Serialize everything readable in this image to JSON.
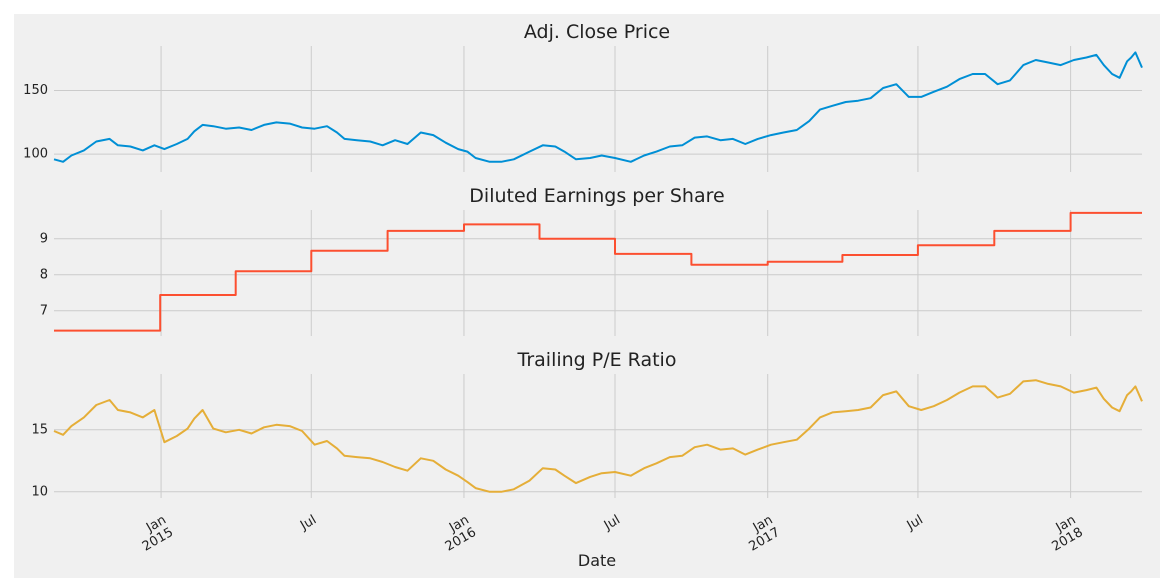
{
  "chart_data": [
    {
      "type": "line",
      "title": "Adj. Close Price",
      "xlabel": "",
      "ylabel": "",
      "color": "#008fd5",
      "yticks": [
        100,
        150
      ],
      "ylim": [
        86,
        185
      ],
      "xlim": [
        "2014-08-25",
        "2018-03-28"
      ],
      "grid": true,
      "series": [
        {
          "x": [
            "2014-08-25",
            "2014-09-05",
            "2014-09-15",
            "2014-09-30",
            "2014-10-15",
            "2014-10-31",
            "2014-11-10",
            "2014-11-25",
            "2014-12-10",
            "2014-12-24",
            "2015-01-05",
            "2015-01-20",
            "2015-02-02",
            "2015-02-10",
            "2015-02-20",
            "2015-03-05",
            "2015-03-20",
            "2015-04-05",
            "2015-04-20",
            "2015-05-05",
            "2015-05-20",
            "2015-06-05",
            "2015-06-20",
            "2015-07-05",
            "2015-07-20",
            "2015-08-01",
            "2015-08-10",
            "2015-08-25",
            "2015-09-10",
            "2015-09-25",
            "2015-10-10",
            "2015-10-25",
            "2015-11-10",
            "2015-11-25",
            "2015-12-10",
            "2015-12-25",
            "2016-01-05",
            "2016-01-15",
            "2016-02-01",
            "2016-02-15",
            "2016-03-01",
            "2016-03-20",
            "2016-04-05",
            "2016-04-20",
            "2016-05-01",
            "2016-05-15",
            "2016-06-01",
            "2016-06-15",
            "2016-07-01",
            "2016-07-20",
            "2016-08-05",
            "2016-08-20",
            "2016-09-05",
            "2016-09-20",
            "2016-10-05",
            "2016-10-20",
            "2016-11-05",
            "2016-11-20",
            "2016-12-05",
            "2016-12-20",
            "2017-01-05",
            "2017-01-20",
            "2017-02-05",
            "2017-02-20",
            "2017-03-05",
            "2017-03-20",
            "2017-04-05",
            "2017-04-20",
            "2017-05-05",
            "2017-05-20",
            "2017-06-05",
            "2017-06-20",
            "2017-07-05",
            "2017-07-20",
            "2017-08-05",
            "2017-08-20",
            "2017-09-05",
            "2017-09-20",
            "2017-10-05",
            "2017-10-20",
            "2017-11-05",
            "2017-11-20",
            "2017-12-05",
            "2017-12-20",
            "2018-01-05",
            "2018-01-20",
            "2018-02-01",
            "2018-02-10",
            "2018-02-20",
            "2018-03-01",
            "2018-03-10",
            "2018-03-15",
            "2018-03-20",
            "2018-03-28"
          ],
          "y": [
            96,
            94,
            99,
            103,
            110,
            112,
            107,
            106,
            103,
            107,
            104,
            108,
            112,
            118,
            123,
            122,
            120,
            121,
            119,
            123,
            125,
            124,
            121,
            120,
            122,
            117,
            112,
            111,
            110,
            107,
            111,
            108,
            117,
            115,
            109,
            104,
            102,
            97,
            94,
            94,
            96,
            102,
            107,
            106,
            102,
            96,
            97,
            99,
            97,
            94,
            99,
            102,
            106,
            107,
            113,
            114,
            111,
            112,
            108,
            112,
            115,
            117,
            119,
            126,
            135,
            138,
            141,
            142,
            144,
            152,
            155,
            145,
            145,
            149,
            153,
            159,
            163,
            163,
            155,
            158,
            170,
            174,
            172,
            170,
            174,
            176,
            178,
            170,
            163,
            160,
            173,
            176,
            180,
            168
          ]
        }
      ]
    },
    {
      "type": "line",
      "title": "Diluted Earnings per Share",
      "xlabel": "",
      "ylabel": "",
      "color": "#fc4f30",
      "yticks": [
        7,
        8,
        9
      ],
      "ylim": [
        6.3,
        9.8
      ],
      "xlim": [
        "2014-08-25",
        "2018-03-28"
      ],
      "grid": true,
      "step": true,
      "series": [
        {
          "x": [
            "2014-08-25",
            "2014-12-31",
            "2015-04-01",
            "2015-07-01",
            "2015-10-01",
            "2016-01-01",
            "2016-04-01",
            "2016-07-01",
            "2016-10-01",
            "2017-01-01",
            "2017-04-01",
            "2017-07-01",
            "2017-10-01",
            "2018-01-01",
            "2018-03-28"
          ],
          "y": [
            6.45,
            7.44,
            8.1,
            8.67,
            9.22,
            9.4,
            9.0,
            8.58,
            8.28,
            8.36,
            8.55,
            8.82,
            9.22,
            9.72,
            9.72
          ]
        }
      ]
    },
    {
      "type": "line",
      "title": "Trailing P/E Ratio",
      "xlabel": "Date",
      "ylabel": "",
      "color": "#e5ae38",
      "yticks": [
        10,
        15
      ],
      "ylim": [
        9.5,
        19.5
      ],
      "xlim": [
        "2014-08-25",
        "2018-03-28"
      ],
      "xticks": [
        {
          "date": "2015-01-01",
          "lines": [
            "Jan",
            "2015"
          ]
        },
        {
          "date": "2015-07-01",
          "lines": [
            "Jul"
          ]
        },
        {
          "date": "2016-01-01",
          "lines": [
            "Jan",
            "2016"
          ]
        },
        {
          "date": "2016-07-01",
          "lines": [
            "Jul"
          ]
        },
        {
          "date": "2017-01-01",
          "lines": [
            "Jan",
            "2017"
          ]
        },
        {
          "date": "2017-07-01",
          "lines": [
            "Jul"
          ]
        },
        {
          "date": "2018-01-01",
          "lines": [
            "Jan",
            "2018"
          ]
        }
      ],
      "grid": true,
      "series": [
        {
          "x": [
            "2014-08-25",
            "2014-09-05",
            "2014-09-15",
            "2014-09-30",
            "2014-10-15",
            "2014-10-31",
            "2014-11-10",
            "2014-11-25",
            "2014-12-10",
            "2014-12-24",
            "2015-01-05",
            "2015-01-20",
            "2015-02-02",
            "2015-02-10",
            "2015-02-20",
            "2015-03-05",
            "2015-03-20",
            "2015-04-05",
            "2015-04-20",
            "2015-05-05",
            "2015-05-20",
            "2015-06-05",
            "2015-06-20",
            "2015-07-05",
            "2015-07-20",
            "2015-08-01",
            "2015-08-10",
            "2015-08-25",
            "2015-09-10",
            "2015-09-25",
            "2015-10-10",
            "2015-10-25",
            "2015-11-10",
            "2015-11-25",
            "2015-12-10",
            "2015-12-25",
            "2016-01-05",
            "2016-01-15",
            "2016-02-01",
            "2016-02-15",
            "2016-03-01",
            "2016-03-20",
            "2016-04-05",
            "2016-04-20",
            "2016-05-01",
            "2016-05-15",
            "2016-06-01",
            "2016-06-15",
            "2016-07-01",
            "2016-07-20",
            "2016-08-05",
            "2016-08-20",
            "2016-09-05",
            "2016-09-20",
            "2016-10-05",
            "2016-10-20",
            "2016-11-05",
            "2016-11-20",
            "2016-12-05",
            "2016-12-20",
            "2017-01-05",
            "2017-01-20",
            "2017-02-05",
            "2017-02-20",
            "2017-03-05",
            "2017-03-20",
            "2017-04-05",
            "2017-04-20",
            "2017-05-05",
            "2017-05-20",
            "2017-06-05",
            "2017-06-20",
            "2017-07-05",
            "2017-07-20",
            "2017-08-05",
            "2017-08-20",
            "2017-09-05",
            "2017-09-20",
            "2017-10-05",
            "2017-10-20",
            "2017-11-05",
            "2017-11-20",
            "2017-12-05",
            "2017-12-20",
            "2018-01-05",
            "2018-01-20",
            "2018-02-01",
            "2018-02-10",
            "2018-02-20",
            "2018-03-01",
            "2018-03-10",
            "2018-03-15",
            "2018-03-20",
            "2018-03-28"
          ],
          "y": [
            14.9,
            14.6,
            15.3,
            16.0,
            17.0,
            17.4,
            16.6,
            16.4,
            16.0,
            16.6,
            14.0,
            14.5,
            15.1,
            15.9,
            16.6,
            15.1,
            14.8,
            15.0,
            14.7,
            15.2,
            15.4,
            15.3,
            14.9,
            13.8,
            14.1,
            13.5,
            12.9,
            12.8,
            12.7,
            12.4,
            12.0,
            11.7,
            12.7,
            12.5,
            11.8,
            11.3,
            10.8,
            10.3,
            10.0,
            10.0,
            10.2,
            10.9,
            11.9,
            11.8,
            11.3,
            10.7,
            11.2,
            11.5,
            11.6,
            11.3,
            11.9,
            12.3,
            12.8,
            12.9,
            13.6,
            13.8,
            13.4,
            13.5,
            13.0,
            13.4,
            13.8,
            14.0,
            14.2,
            15.1,
            16.0,
            16.4,
            16.5,
            16.6,
            16.8,
            17.8,
            18.1,
            16.9,
            16.6,
            16.9,
            17.4,
            18.0,
            18.5,
            18.5,
            17.6,
            17.9,
            18.9,
            19.0,
            18.7,
            18.5,
            18.0,
            18.2,
            18.4,
            17.5,
            16.8,
            16.5,
            17.8,
            18.1,
            18.5,
            17.3
          ]
        }
      ]
    }
  ]
}
